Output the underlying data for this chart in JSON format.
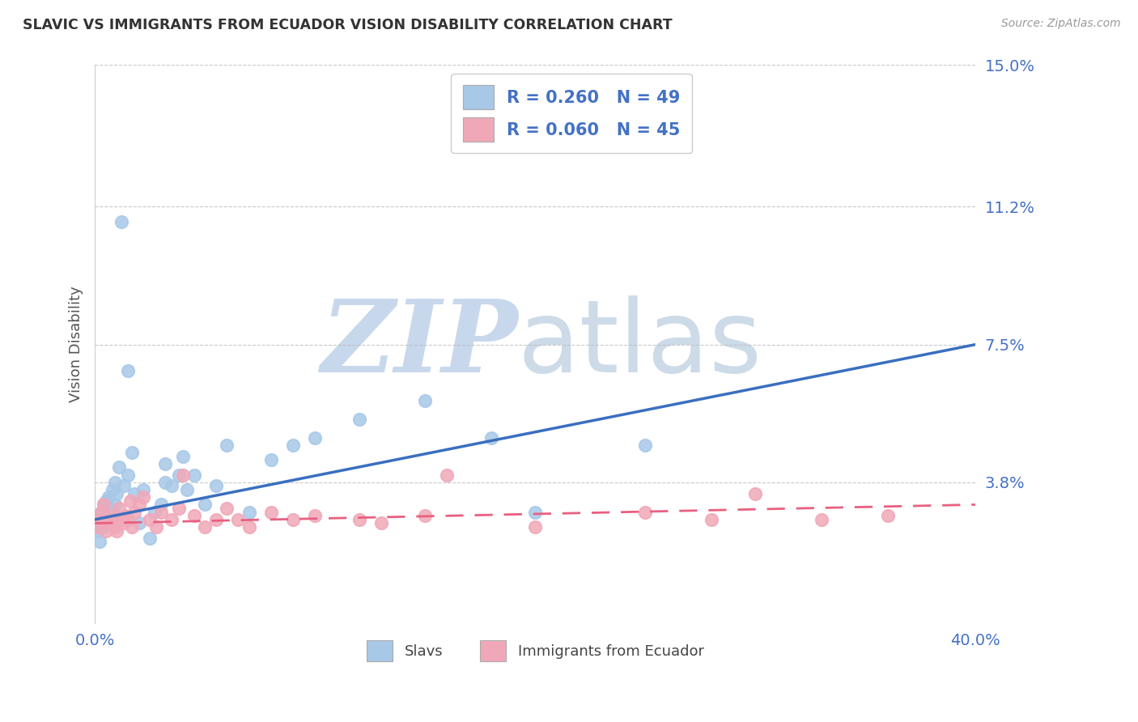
{
  "title": "SLAVIC VS IMMIGRANTS FROM ECUADOR VISION DISABILITY CORRELATION CHART",
  "source_text": "Source: ZipAtlas.com",
  "ylabel": "Vision Disability",
  "xlim": [
    0.0,
    0.4
  ],
  "ylim": [
    0.0,
    0.15
  ],
  "yticks": [
    0.038,
    0.075,
    0.112,
    0.15
  ],
  "ytick_labels": [
    "3.8%",
    "7.5%",
    "11.2%",
    "15.0%"
  ],
  "xticks": [
    0.0,
    0.4
  ],
  "xtick_labels": [
    "0.0%",
    "40.0%"
  ],
  "legend_r1": "R = 0.260",
  "legend_n1": "N = 49",
  "legend_r2": "R = 0.060",
  "legend_n2": "N = 45",
  "legend_label1": "Slavs",
  "legend_label2": "Immigrants from Ecuador",
  "color_slavs": "#A8C8E8",
  "color_ecuador": "#F0A8B8",
  "color_line_slavs": "#3A6FBF",
  "color_line_ecuador": "#E86080",
  "color_text_blue": "#4472C4",
  "background_color": "#FFFFFF",
  "slavs_x": [
    0.001,
    0.002,
    0.002,
    0.003,
    0.003,
    0.004,
    0.004,
    0.005,
    0.005,
    0.006,
    0.006,
    0.007,
    0.007,
    0.008,
    0.008,
    0.009,
    0.009,
    0.01,
    0.011,
    0.012,
    0.013,
    0.015,
    0.015,
    0.017,
    0.018,
    0.02,
    0.022,
    0.025,
    0.027,
    0.03,
    0.032,
    0.032,
    0.035,
    0.038,
    0.04,
    0.042,
    0.045,
    0.05,
    0.055,
    0.06,
    0.07,
    0.08,
    0.09,
    0.1,
    0.12,
    0.15,
    0.18,
    0.2,
    0.25
  ],
  "slavs_y": [
    0.025,
    0.027,
    0.022,
    0.03,
    0.028,
    0.032,
    0.026,
    0.033,
    0.027,
    0.034,
    0.029,
    0.028,
    0.031,
    0.03,
    0.036,
    0.032,
    0.038,
    0.035,
    0.042,
    0.108,
    0.037,
    0.04,
    0.068,
    0.046,
    0.035,
    0.027,
    0.036,
    0.023,
    0.03,
    0.032,
    0.038,
    0.043,
    0.037,
    0.04,
    0.045,
    0.036,
    0.04,
    0.032,
    0.037,
    0.048,
    0.03,
    0.044,
    0.048,
    0.05,
    0.055,
    0.06,
    0.05,
    0.03,
    0.048
  ],
  "ecuador_x": [
    0.001,
    0.002,
    0.003,
    0.004,
    0.005,
    0.006,
    0.007,
    0.008,
    0.009,
    0.01,
    0.011,
    0.012,
    0.013,
    0.014,
    0.015,
    0.016,
    0.017,
    0.018,
    0.02,
    0.022,
    0.025,
    0.028,
    0.03,
    0.035,
    0.038,
    0.04,
    0.045,
    0.05,
    0.055,
    0.06,
    0.065,
    0.07,
    0.08,
    0.09,
    0.1,
    0.12,
    0.13,
    0.15,
    0.16,
    0.2,
    0.25,
    0.28,
    0.3,
    0.33,
    0.36
  ],
  "ecuador_y": [
    0.026,
    0.028,
    0.03,
    0.032,
    0.025,
    0.027,
    0.029,
    0.028,
    0.026,
    0.025,
    0.031,
    0.028,
    0.027,
    0.029,
    0.028,
    0.033,
    0.026,
    0.03,
    0.032,
    0.034,
    0.028,
    0.026,
    0.03,
    0.028,
    0.031,
    0.04,
    0.029,
    0.026,
    0.028,
    0.031,
    0.028,
    0.026,
    0.03,
    0.028,
    0.029,
    0.028,
    0.027,
    0.029,
    0.04,
    0.026,
    0.03,
    0.028,
    0.035,
    0.028,
    0.029
  ],
  "slavs_line_x0": 0.0,
  "slavs_line_y0": 0.028,
  "slavs_line_x1": 0.4,
  "slavs_line_y1": 0.075,
  "ecuador_line_x0": 0.0,
  "ecuador_line_y0": 0.027,
  "ecuador_line_x1": 0.4,
  "ecuador_line_y1": 0.032
}
